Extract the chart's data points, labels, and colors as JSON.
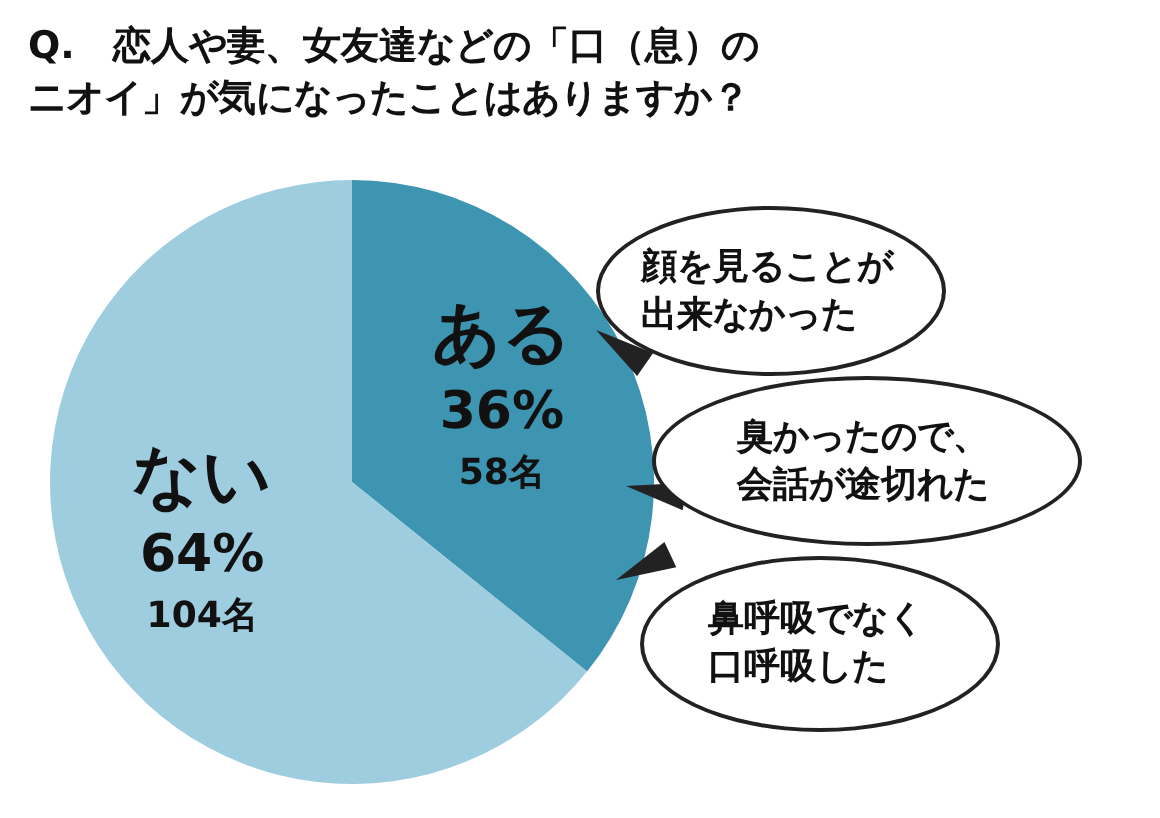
{
  "chart_data": {
    "type": "pie",
    "title": "Q.　恋人や妻、女友達などの「口（息）のニオイ」が気になったことはありますか？",
    "categories": [
      "ある",
      "ない"
    ],
    "values": [
      58,
      104
    ],
    "value_labels": [
      "36%\n58名",
      "64%\n104名"
    ],
    "colors": [
      "#3d95b1",
      "#9fcde0"
    ],
    "legend": false,
    "annotations": [
      "顔を見ることが出来なかった",
      "臭かったので、会話が途切れた",
      "鼻呼吸でなく口呼吸した"
    ]
  }
}
